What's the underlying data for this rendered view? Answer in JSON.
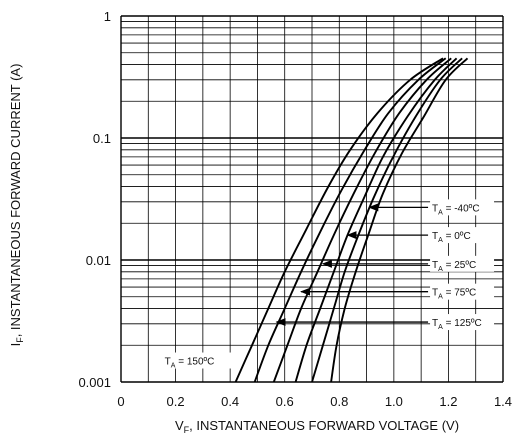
{
  "chart_data": {
    "type": "line",
    "xlabel_main": "V",
    "xlabel_sub": "F",
    "xlabel_rest": ", INSTANTANEOUS FORWARD VOLTAGE (V)",
    "ylabel_main": "I",
    "ylabel_sub": "F",
    "ylabel_rest": ", INSTANTANEOUS FORWARD CURRENT (A)",
    "x_ticks": [
      "0",
      "0.2",
      "0.4",
      "0.6",
      "0.8",
      "1.0",
      "1.2",
      "1.4"
    ],
    "y_ticks": [
      "0.001",
      "0.01",
      "0.1",
      "1"
    ],
    "xlim": [
      0,
      1.4
    ],
    "ylim": [
      0.001,
      1
    ],
    "y_scale": "log",
    "grid": true,
    "curve_color": "#000000",
    "series": [
      {
        "name": "T_A = 150°C",
        "label_main": "T",
        "label_sub": "A",
        "label_rest": " = 150ºC",
        "points": [
          [
            0.42,
            0.001
          ],
          [
            0.48,
            0.002
          ],
          [
            0.54,
            0.004
          ],
          [
            0.6,
            0.008
          ],
          [
            0.68,
            0.018
          ],
          [
            0.76,
            0.04
          ],
          [
            0.84,
            0.08
          ],
          [
            0.94,
            0.16
          ],
          [
            1.06,
            0.3
          ],
          [
            1.18,
            0.45
          ]
        ]
      },
      {
        "name": "T_A = 125°C",
        "label_main": "T",
        "label_sub": "A",
        "label_rest": " = 125ºC",
        "points": [
          [
            0.49,
            0.001
          ],
          [
            0.54,
            0.002
          ],
          [
            0.6,
            0.004
          ],
          [
            0.66,
            0.008
          ],
          [
            0.73,
            0.017
          ],
          [
            0.81,
            0.038
          ],
          [
            0.89,
            0.078
          ],
          [
            0.98,
            0.16
          ],
          [
            1.09,
            0.3
          ],
          [
            1.19,
            0.45
          ]
        ]
      },
      {
        "name": "T_A = 75°C",
        "label_main": "T",
        "label_sub": "A",
        "label_rest": " = 75ºC",
        "points": [
          [
            0.56,
            0.001
          ],
          [
            0.61,
            0.002
          ],
          [
            0.66,
            0.004
          ],
          [
            0.72,
            0.008
          ],
          [
            0.78,
            0.016
          ],
          [
            0.85,
            0.034
          ],
          [
            0.93,
            0.075
          ],
          [
            1.02,
            0.16
          ],
          [
            1.12,
            0.3
          ],
          [
            1.21,
            0.45
          ]
        ]
      },
      {
        "name": "T_A = 25°C",
        "label_main": "T",
        "label_sub": "A",
        "label_rest": " = 25ºC",
        "points": [
          [
            0.64,
            0.001
          ],
          [
            0.68,
            0.002
          ],
          [
            0.73,
            0.004
          ],
          [
            0.78,
            0.008
          ],
          [
            0.83,
            0.016
          ],
          [
            0.89,
            0.032
          ],
          [
            0.96,
            0.07
          ],
          [
            1.05,
            0.15
          ],
          [
            1.15,
            0.3
          ],
          [
            1.23,
            0.45
          ]
        ]
      },
      {
        "name": "T_A = 0°C",
        "label_main": "T",
        "label_sub": "A",
        "label_rest": " = 0ºC",
        "points": [
          [
            0.7,
            0.001
          ],
          [
            0.74,
            0.002
          ],
          [
            0.78,
            0.004
          ],
          [
            0.82,
            0.008
          ],
          [
            0.87,
            0.016
          ],
          [
            0.93,
            0.034
          ],
          [
            1.0,
            0.072
          ],
          [
            1.08,
            0.15
          ],
          [
            1.17,
            0.3
          ],
          [
            1.25,
            0.45
          ]
        ]
      },
      {
        "name": "T_A = -40°C",
        "label_main": "T",
        "label_sub": "A",
        "label_rest": " = -40ºC",
        "points": [
          [
            0.77,
            0.001
          ],
          [
            0.79,
            0.002
          ],
          [
            0.82,
            0.004
          ],
          [
            0.86,
            0.008
          ],
          [
            0.91,
            0.017
          ],
          [
            0.96,
            0.035
          ],
          [
            1.03,
            0.075
          ],
          [
            1.11,
            0.15
          ],
          [
            1.19,
            0.3
          ],
          [
            1.27,
            0.45
          ]
        ]
      }
    ],
    "annotations": [
      {
        "series": "T_A = -40°C",
        "arrow_at": [
          0.91,
          0.027
        ],
        "label_at": [
          1.14,
          0.027
        ]
      },
      {
        "series": "T_A = 0°C",
        "arrow_at": [
          0.83,
          0.016
        ],
        "label_at": [
          1.14,
          0.016
        ]
      },
      {
        "series": "T_A = 25°C",
        "arrow_at": [
          0.74,
          0.0093
        ],
        "label_at": [
          1.14,
          0.0093
        ]
      },
      {
        "series": "T_A = 75°C",
        "arrow_at": [
          0.66,
          0.0055
        ],
        "label_at": [
          1.14,
          0.0055
        ]
      },
      {
        "series": "T_A = 125°C",
        "arrow_at": [
          0.57,
          0.0031
        ],
        "label_at": [
          1.14,
          0.0031
        ]
      }
    ]
  }
}
